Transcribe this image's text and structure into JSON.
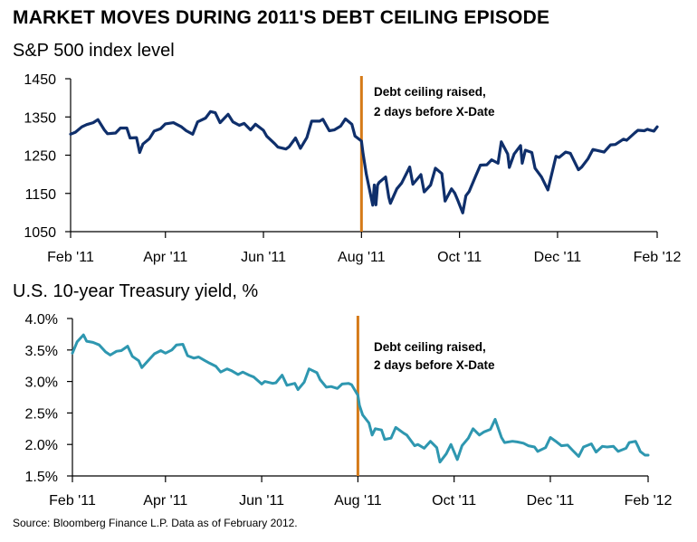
{
  "header": {
    "title": "MARKET MOVES DURING 2011'S DEBT CEILING EPISODE"
  },
  "footer": {
    "source": "Source: Bloomberg Finance L.P. Data as of February 2012."
  },
  "colors": {
    "sp500_line": "#0f2f6b",
    "treasury_line": "#2e97b0",
    "event_line": "#d57a18",
    "axis": "#000000"
  },
  "chart_data": [
    {
      "type": "line",
      "title": "S&P 500 index level",
      "xlabel": "",
      "ylabel": "",
      "x_ticks": [
        "Feb '11",
        "Apr '11",
        "Jun '11",
        "Aug '11",
        "Oct '11",
        "Dec '11",
        "Feb '12"
      ],
      "y_ticks": [
        "1450",
        "1350",
        "1250",
        "1150",
        "1050"
      ],
      "ylim": [
        1050,
        1450
      ],
      "xlim": [
        "2011-02-01",
        "2012-02-01"
      ],
      "grid": false,
      "annotation": {
        "x": "2011-08-01",
        "lines": [
          "Debt ceiling raised,",
          "2 days before X-Date"
        ]
      },
      "series": [
        {
          "name": "",
          "points": [
            [
              "2011-02-01",
              1305
            ],
            [
              "2011-02-04",
              1310
            ],
            [
              "2011-02-08",
              1324
            ],
            [
              "2011-02-11",
              1330
            ],
            [
              "2011-02-15",
              1335
            ],
            [
              "2011-02-18",
              1343
            ],
            [
              "2011-02-22",
              1316
            ],
            [
              "2011-02-24",
              1306
            ],
            [
              "2011-03-01",
              1308
            ],
            [
              "2011-03-04",
              1321
            ],
            [
              "2011-03-08",
              1321
            ],
            [
              "2011-03-10",
              1295
            ],
            [
              "2011-03-14",
              1296
            ],
            [
              "2011-03-16",
              1257
            ],
            [
              "2011-03-18",
              1279
            ],
            [
              "2011-03-22",
              1293
            ],
            [
              "2011-03-25",
              1313
            ],
            [
              "2011-03-29",
              1319
            ],
            [
              "2011-04-01",
              1332
            ],
            [
              "2011-04-06",
              1335
            ],
            [
              "2011-04-11",
              1324
            ],
            [
              "2011-04-14",
              1314
            ],
            [
              "2011-04-18",
              1305
            ],
            [
              "2011-04-21",
              1337
            ],
            [
              "2011-04-26",
              1347
            ],
            [
              "2011-04-29",
              1364
            ],
            [
              "2011-05-02",
              1361
            ],
            [
              "2011-05-05",
              1335
            ],
            [
              "2011-05-10",
              1357
            ],
            [
              "2011-05-13",
              1337
            ],
            [
              "2011-05-17",
              1328
            ],
            [
              "2011-05-20",
              1333
            ],
            [
              "2011-05-24",
              1316
            ],
            [
              "2011-05-27",
              1331
            ],
            [
              "2011-06-01",
              1315
            ],
            [
              "2011-06-03",
              1300
            ],
            [
              "2011-06-08",
              1280
            ],
            [
              "2011-06-10",
              1271
            ],
            [
              "2011-06-15",
              1266
            ],
            [
              "2011-06-17",
              1272
            ],
            [
              "2011-06-21",
              1295
            ],
            [
              "2011-06-24",
              1268
            ],
            [
              "2011-06-28",
              1296
            ],
            [
              "2011-07-01",
              1339
            ],
            [
              "2011-07-06",
              1339
            ],
            [
              "2011-07-08",
              1344
            ],
            [
              "2011-07-12",
              1314
            ],
            [
              "2011-07-15",
              1316
            ],
            [
              "2011-07-19",
              1326
            ],
            [
              "2011-07-22",
              1345
            ],
            [
              "2011-07-26",
              1331
            ],
            [
              "2011-07-28",
              1300
            ],
            [
              "2011-08-01",
              1287
            ],
            [
              "2011-08-02",
              1254
            ],
            [
              "2011-08-04",
              1200
            ],
            [
              "2011-08-08",
              1119
            ],
            [
              "2011-08-09",
              1172
            ],
            [
              "2011-08-10",
              1120
            ],
            [
              "2011-08-11",
              1172
            ],
            [
              "2011-08-12",
              1179
            ],
            [
              "2011-08-16",
              1193
            ],
            [
              "2011-08-18",
              1140
            ],
            [
              "2011-08-19",
              1124
            ],
            [
              "2011-08-23",
              1162
            ],
            [
              "2011-08-26",
              1177
            ],
            [
              "2011-08-31",
              1219
            ],
            [
              "2011-09-02",
              1174
            ],
            [
              "2011-09-07",
              1199
            ],
            [
              "2011-09-09",
              1154
            ],
            [
              "2011-09-13",
              1172
            ],
            [
              "2011-09-16",
              1216
            ],
            [
              "2011-09-20",
              1202
            ],
            [
              "2011-09-22",
              1130
            ],
            [
              "2011-09-26",
              1162
            ],
            [
              "2011-09-28",
              1151
            ],
            [
              "2011-09-30",
              1131
            ],
            [
              "2011-10-03",
              1099
            ],
            [
              "2011-10-05",
              1144
            ],
            [
              "2011-10-07",
              1155
            ],
            [
              "2011-10-11",
              1195
            ],
            [
              "2011-10-14",
              1224
            ],
            [
              "2011-10-18",
              1225
            ],
            [
              "2011-10-21",
              1238
            ],
            [
              "2011-10-25",
              1229
            ],
            [
              "2011-10-27",
              1285
            ],
            [
              "2011-10-31",
              1253
            ],
            [
              "2011-11-01",
              1218
            ],
            [
              "2011-11-04",
              1253
            ],
            [
              "2011-11-08",
              1275
            ],
            [
              "2011-11-09",
              1229
            ],
            [
              "2011-11-11",
              1263
            ],
            [
              "2011-11-15",
              1257
            ],
            [
              "2011-11-17",
              1216
            ],
            [
              "2011-11-21",
              1193
            ],
            [
              "2011-11-25",
              1159
            ],
            [
              "2011-11-30",
              1247
            ],
            [
              "2011-12-02",
              1244
            ],
            [
              "2011-12-06",
              1258
            ],
            [
              "2011-12-09",
              1255
            ],
            [
              "2011-12-14",
              1212
            ],
            [
              "2011-12-16",
              1219
            ],
            [
              "2011-12-20",
              1241
            ],
            [
              "2011-12-23",
              1265
            ],
            [
              "2011-12-30",
              1258
            ],
            [
              "2012-01-03",
              1277
            ],
            [
              "2012-01-06",
              1278
            ],
            [
              "2012-01-11",
              1292
            ],
            [
              "2012-01-13",
              1289
            ],
            [
              "2012-01-18",
              1308
            ],
            [
              "2012-01-20",
              1315
            ],
            [
              "2012-01-24",
              1314
            ],
            [
              "2012-01-26",
              1318
            ],
            [
              "2012-01-27",
              1316
            ],
            [
              "2012-01-30",
              1313
            ],
            [
              "2012-02-01",
              1324
            ]
          ]
        }
      ]
    },
    {
      "type": "line",
      "title": "U.S. 10-year Treasury yield, %",
      "xlabel": "",
      "ylabel": "",
      "x_ticks": [
        "Feb '11",
        "Apr '11",
        "Jun '11",
        "Aug '11",
        "Oct '11",
        "Dec '11",
        "Feb '12"
      ],
      "y_ticks": [
        "4.0%",
        "3.5%",
        "3.0%",
        "2.5%",
        "2.0%",
        "1.5%"
      ],
      "ylim": [
        1.5,
        4.0
      ],
      "xlim": [
        "2011-02-01",
        "2012-02-01"
      ],
      "grid": false,
      "annotation": {
        "x": "2011-08-01",
        "lines": [
          "Debt ceiling raised,",
          "2 days before X-Date"
        ]
      },
      "series": [
        {
          "name": "",
          "points": [
            [
              "2011-02-01",
              3.45
            ],
            [
              "2011-02-04",
              3.63
            ],
            [
              "2011-02-08",
              3.74
            ],
            [
              "2011-02-10",
              3.64
            ],
            [
              "2011-02-14",
              3.62
            ],
            [
              "2011-02-18",
              3.58
            ],
            [
              "2011-02-22",
              3.47
            ],
            [
              "2011-02-25",
              3.42
            ],
            [
              "2011-03-01",
              3.48
            ],
            [
              "2011-03-04",
              3.49
            ],
            [
              "2011-03-08",
              3.56
            ],
            [
              "2011-03-11",
              3.4
            ],
            [
              "2011-03-15",
              3.33
            ],
            [
              "2011-03-17",
              3.22
            ],
            [
              "2011-03-21",
              3.33
            ],
            [
              "2011-03-25",
              3.44
            ],
            [
              "2011-03-29",
              3.49
            ],
            [
              "2011-04-01",
              3.45
            ],
            [
              "2011-04-05",
              3.5
            ],
            [
              "2011-04-08",
              3.58
            ],
            [
              "2011-04-12",
              3.59
            ],
            [
              "2011-04-15",
              3.41
            ],
            [
              "2011-04-19",
              3.37
            ],
            [
              "2011-04-22",
              3.39
            ],
            [
              "2011-04-26",
              3.33
            ],
            [
              "2011-04-29",
              3.29
            ],
            [
              "2011-05-03",
              3.24
            ],
            [
              "2011-05-06",
              3.15
            ],
            [
              "2011-05-10",
              3.2
            ],
            [
              "2011-05-13",
              3.17
            ],
            [
              "2011-05-17",
              3.11
            ],
            [
              "2011-05-20",
              3.15
            ],
            [
              "2011-05-24",
              3.1
            ],
            [
              "2011-05-27",
              3.07
            ],
            [
              "2011-06-01",
              2.96
            ],
            [
              "2011-06-03",
              3.0
            ],
            [
              "2011-06-08",
              2.97
            ],
            [
              "2011-06-10",
              2.98
            ],
            [
              "2011-06-14",
              3.1
            ],
            [
              "2011-06-17",
              2.94
            ],
            [
              "2011-06-22",
              2.97
            ],
            [
              "2011-06-24",
              2.87
            ],
            [
              "2011-06-28",
              2.99
            ],
            [
              "2011-07-01",
              3.2
            ],
            [
              "2011-07-06",
              3.14
            ],
            [
              "2011-07-08",
              3.03
            ],
            [
              "2011-07-12",
              2.91
            ],
            [
              "2011-07-15",
              2.92
            ],
            [
              "2011-07-19",
              2.89
            ],
            [
              "2011-07-22",
              2.96
            ],
            [
              "2011-07-26",
              2.97
            ],
            [
              "2011-07-28",
              2.95
            ],
            [
              "2011-08-01",
              2.78
            ],
            [
              "2011-08-02",
              2.62
            ],
            [
              "2011-08-04",
              2.47
            ],
            [
              "2011-08-08",
              2.34
            ],
            [
              "2011-08-10",
              2.15
            ],
            [
              "2011-08-12",
              2.25
            ],
            [
              "2011-08-16",
              2.23
            ],
            [
              "2011-08-18",
              2.08
            ],
            [
              "2011-08-22",
              2.1
            ],
            [
              "2011-08-25",
              2.27
            ],
            [
              "2011-08-30",
              2.18
            ],
            [
              "2011-09-01",
              2.15
            ],
            [
              "2011-09-06",
              1.98
            ],
            [
              "2011-09-08",
              2.0
            ],
            [
              "2011-09-12",
              1.94
            ],
            [
              "2011-09-16",
              2.05
            ],
            [
              "2011-09-20",
              1.95
            ],
            [
              "2011-09-22",
              1.72
            ],
            [
              "2011-09-26",
              1.85
            ],
            [
              "2011-09-29",
              2.0
            ],
            [
              "2011-10-03",
              1.76
            ],
            [
              "2011-10-06",
              1.98
            ],
            [
              "2011-10-10",
              2.1
            ],
            [
              "2011-10-13",
              2.25
            ],
            [
              "2011-10-17",
              2.15
            ],
            [
              "2011-10-20",
              2.2
            ],
            [
              "2011-10-24",
              2.24
            ],
            [
              "2011-10-27",
              2.4
            ],
            [
              "2011-10-31",
              2.11
            ],
            [
              "2011-11-02",
              2.03
            ],
            [
              "2011-11-07",
              2.05
            ],
            [
              "2011-11-10",
              2.04
            ],
            [
              "2011-11-14",
              2.02
            ],
            [
              "2011-11-17",
              1.98
            ],
            [
              "2011-11-21",
              1.96
            ],
            [
              "2011-11-23",
              1.89
            ],
            [
              "2011-11-28",
              1.95
            ],
            [
              "2011-12-01",
              2.11
            ],
            [
              "2011-12-05",
              2.04
            ],
            [
              "2011-12-08",
              1.98
            ],
            [
              "2011-12-12",
              1.99
            ],
            [
              "2011-12-15",
              1.91
            ],
            [
              "2011-12-19",
              1.81
            ],
            [
              "2011-12-22",
              1.96
            ],
            [
              "2011-12-27",
              2.01
            ],
            [
              "2011-12-30",
              1.88
            ],
            [
              "2012-01-03",
              1.97
            ],
            [
              "2012-01-06",
              1.96
            ],
            [
              "2012-01-10",
              1.97
            ],
            [
              "2012-01-13",
              1.89
            ],
            [
              "2012-01-18",
              1.94
            ],
            [
              "2012-01-20",
              2.03
            ],
            [
              "2012-01-24",
              2.05
            ],
            [
              "2012-01-26",
              1.95
            ],
            [
              "2012-01-27",
              1.89
            ],
            [
              "2012-01-30",
              1.83
            ],
            [
              "2012-02-01",
              1.83
            ]
          ]
        }
      ]
    }
  ]
}
